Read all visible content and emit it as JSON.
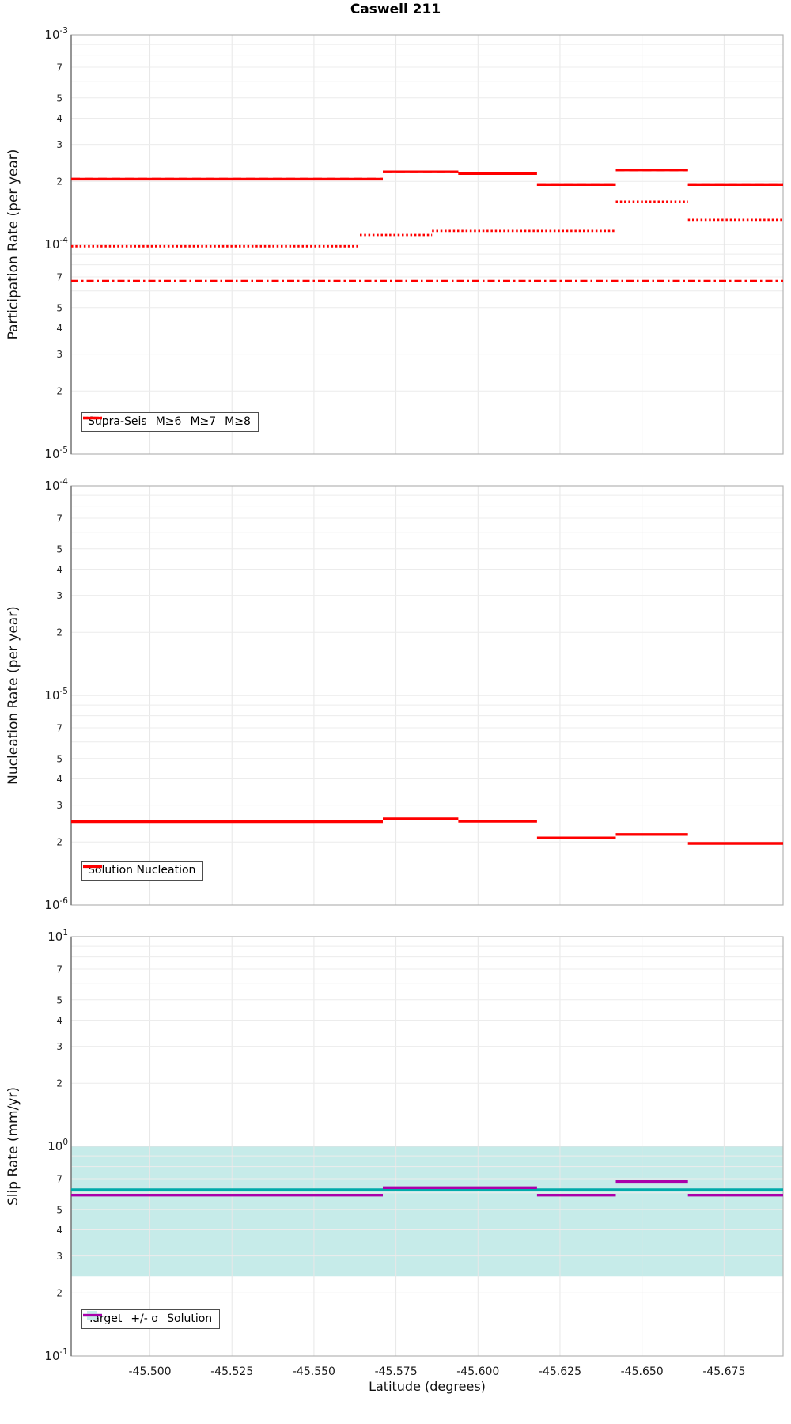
{
  "title": "Caswell 211",
  "chart_data": [
    {
      "type": "line",
      "title": "Caswell 211",
      "ylabel": "Participation Rate (per year)",
      "yscale": "log",
      "ylim": [
        1e-05,
        0.001
      ],
      "ydecades": [
        "-3",
        "-4",
        "-5"
      ],
      "yminor_labels": [
        7,
        5,
        4,
        3,
        2
      ],
      "xlim": [
        -45.476,
        -45.693
      ],
      "xticks": [
        -45.5,
        -45.525,
        -45.55,
        -45.575,
        -45.6,
        -45.625,
        -45.65,
        -45.675
      ],
      "grid": true,
      "legend_position": "bottom-left",
      "legend": [
        {
          "label": "Supra-Seis",
          "swatch": "line",
          "style": "solid",
          "color": "#FF0000"
        },
        {
          "label": "M≥6",
          "swatch": "line",
          "style": "dashed",
          "color": "#FF0000"
        },
        {
          "label": "M≥7",
          "swatch": "line",
          "style": "dotted",
          "color": "#FF0000"
        },
        {
          "label": "M≥8",
          "swatch": "line",
          "style": "dashdot",
          "color": "#FF0000"
        }
      ],
      "series": [
        {
          "name": "Supra-Seis",
          "style": "solid",
          "color": "#FF0000",
          "steps": [
            [
              -45.476,
              -45.571,
              0.000205
            ],
            [
              -45.571,
              -45.594,
              0.000222
            ],
            [
              -45.594,
              -45.618,
              0.000218
            ],
            [
              -45.618,
              -45.642,
              0.000193
            ],
            [
              -45.642,
              -45.664,
              0.000227
            ],
            [
              -45.664,
              -45.693,
              0.000193
            ]
          ]
        },
        {
          "name": "M≥6",
          "style": "dashed",
          "color": "#FF0000",
          "steps": [
            [
              -45.476,
              -45.571,
              0.000205
            ],
            [
              -45.571,
              -45.594,
              0.000222
            ],
            [
              -45.594,
              -45.618,
              0.000218
            ],
            [
              -45.618,
              -45.642,
              0.000193
            ],
            [
              -45.642,
              -45.664,
              0.000227
            ],
            [
              -45.664,
              -45.693,
              0.000193
            ]
          ]
        },
        {
          "name": "M≥7",
          "style": "dotted",
          "color": "#FF0000",
          "steps": [
            [
              -45.476,
              -45.564,
              9.8e-05
            ],
            [
              -45.564,
              -45.586,
              0.000111
            ],
            [
              -45.586,
              -45.642,
              0.000116
            ],
            [
              -45.642,
              -45.664,
              0.00016
            ],
            [
              -45.664,
              -45.693,
              0.000131
            ]
          ]
        },
        {
          "name": "M≥8",
          "style": "dashdot",
          "color": "#FF0000",
          "steps": [
            [
              -45.476,
              -45.693,
              6.7e-05
            ]
          ]
        }
      ]
    },
    {
      "type": "line",
      "ylabel": "Nucleation Rate (per year)",
      "yscale": "log",
      "ylim": [
        1e-06,
        0.0001
      ],
      "ydecades": [
        "-4",
        "-5",
        "-6"
      ],
      "yminor_labels": [
        7,
        5,
        4,
        3,
        2
      ],
      "xlim": [
        -45.476,
        -45.693
      ],
      "xticks": [
        -45.5,
        -45.525,
        -45.55,
        -45.575,
        -45.6,
        -45.625,
        -45.65,
        -45.675
      ],
      "grid": true,
      "legend_position": "bottom-left",
      "legend": [
        {
          "label": "Solution Nucleation",
          "swatch": "line",
          "style": "solid",
          "color": "#FF0000"
        }
      ],
      "series": [
        {
          "name": "Solution Nucleation",
          "style": "solid",
          "color": "#FF0000",
          "steps": [
            [
              -45.476,
              -45.571,
              2.5e-06
            ],
            [
              -45.571,
              -45.594,
              2.58e-06
            ],
            [
              -45.594,
              -45.618,
              2.51e-06
            ],
            [
              -45.618,
              -45.642,
              2.09e-06
            ],
            [
              -45.642,
              -45.664,
              2.17e-06
            ],
            [
              -45.664,
              -45.693,
              1.97e-06
            ]
          ]
        }
      ]
    },
    {
      "type": "line",
      "ylabel": "Slip Rate (mm/yr)",
      "xlabel": "Latitude (degrees)",
      "yscale": "log",
      "ylim": [
        0.1,
        10
      ],
      "ydecades": [
        "1",
        "0",
        "-1"
      ],
      "yminor_labels": [
        7,
        5,
        4,
        3,
        2
      ],
      "xlim": [
        -45.476,
        -45.693
      ],
      "xticks": [
        -45.5,
        -45.525,
        -45.55,
        -45.575,
        -45.6,
        -45.625,
        -45.65,
        -45.675
      ],
      "xtick_labels": [
        "-45.500",
        "-45.525",
        "-45.550",
        "-45.575",
        "-45.600",
        "-45.625",
        "-45.650",
        "-45.675"
      ],
      "grid": true,
      "legend_position": "bottom-left",
      "band": {
        "name": "+/- σ",
        "y_low": 0.24,
        "y_high": 1.0,
        "color": "#C6EBE9"
      },
      "legend": [
        {
          "label": "Target",
          "swatch": "line",
          "style": "solid",
          "color": "#00AAAA"
        },
        {
          "label": "+/- σ",
          "swatch": "patch",
          "style": "solid",
          "color": "#C6EBE9"
        },
        {
          "label": "Solution",
          "swatch": "line",
          "style": "solid",
          "color": "#AA00AA"
        }
      ],
      "series": [
        {
          "name": "Target",
          "style": "solid",
          "color": "#00AAAA",
          "steps": [
            [
              -45.476,
              -45.693,
              0.62
            ]
          ]
        },
        {
          "name": "Solution",
          "style": "solid",
          "color": "#AA00AA",
          "steps": [
            [
              -45.476,
              -45.571,
              0.585
            ],
            [
              -45.571,
              -45.618,
              0.635
            ],
            [
              -45.618,
              -45.642,
              0.585
            ],
            [
              -45.642,
              -45.664,
              0.68
            ],
            [
              -45.664,
              -45.693,
              0.585
            ]
          ]
        }
      ]
    }
  ]
}
